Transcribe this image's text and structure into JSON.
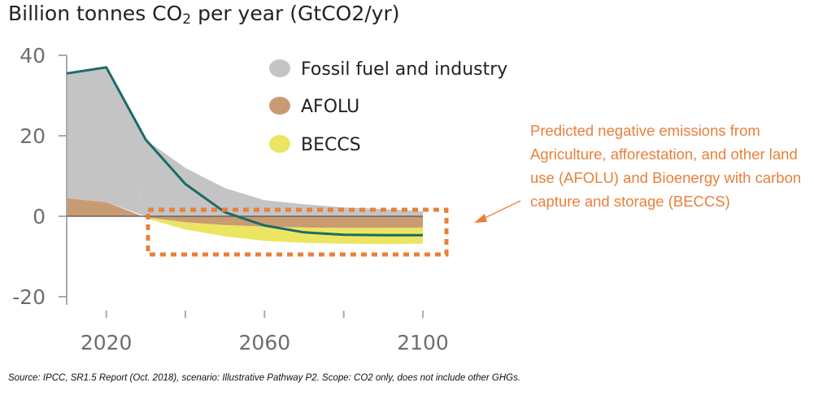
{
  "chart_data": {
    "type": "area",
    "title": "Billion tonnes CO",
    "title_sub": "2",
    "title_rest": " per year (GtCO2/yr)",
    "xlabel": "",
    "ylabel": "",
    "xlim": [
      2010,
      2100
    ],
    "ylim": [
      -20,
      40
    ],
    "x_ticks": [
      2020,
      2060,
      2100
    ],
    "x_minor_ticks": [
      2040,
      2080
    ],
    "y_ticks": [
      -20,
      0,
      20,
      40
    ],
    "x": [
      2010,
      2020,
      2030,
      2040,
      2050,
      2060,
      2070,
      2080,
      2090,
      2100
    ],
    "series": [
      {
        "name": "Fossil fuel and industry",
        "color": "#c4c4c4",
        "values": [
          31,
          33.5,
          19,
          12,
          7,
          4,
          3,
          2.2,
          1.8,
          1.2
        ]
      },
      {
        "name": "AFOLU",
        "color": "#c99b73",
        "values": [
          4.5,
          3.5,
          -0.3,
          -1.5,
          -2.2,
          -2.6,
          -2.8,
          -2.9,
          -2.9,
          -2.8
        ]
      },
      {
        "name": "BECCS",
        "color": "#ece562",
        "values": [
          0,
          0,
          -0.2,
          -1.8,
          -2.8,
          -3.5,
          -3.8,
          -3.9,
          -4,
          -4
        ]
      }
    ],
    "net_line": {
      "color": "#1a6b68",
      "values": [
        35.5,
        37,
        19,
        8,
        1,
        -2.3,
        -4,
        -4.6,
        -4.7,
        -4.7
      ]
    },
    "legend_position": "top-center",
    "highlight_box": {
      "x_range": [
        2030,
        2100
      ],
      "y_range": [
        -9,
        2
      ],
      "color": "#e8803a"
    },
    "annotation": "Predicted negative emissions from Agriculture, afforestation, and other land use (AFOLU) and Bioenergy with carbon capture and storage (BECCS)"
  },
  "source": "Source: IPCC, SR1.5 Report (Oct. 2018), scenario: Illustrative Pathway P2. Scope: CO2 only, does not include other GHGs."
}
